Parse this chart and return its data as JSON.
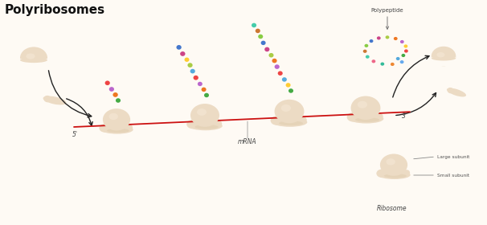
{
  "title": "Polyribosomes",
  "background_color": "#fefaf4",
  "ribosome_color": "#ecdbc4",
  "ribosome_shadow": "#dbc8a8",
  "ribosome_edge": "none",
  "mrna_color": "#cc1111",
  "arrow_color": "#222222",
  "label_mrna": "mRNA",
  "label_polypeptide": "Polypeptide",
  "label_ribosome": "Ribosome",
  "label_large": "Large subunit",
  "label_small": "Small subunit",
  "label_5prime": "5'",
  "label_3prime": "3'",
  "chain1_colors": [
    "#44aa44",
    "#ee7722",
    "#bb66cc",
    "#ee4444"
  ],
  "chain2_colors": [
    "#44aa44",
    "#ee7722",
    "#bb66cc",
    "#ee4444",
    "#55aadd",
    "#aacc44",
    "#ffcc33",
    "#cc4488",
    "#4477cc"
  ],
  "chain3_colors": [
    "#44aa44",
    "#ffcc33",
    "#55aadd",
    "#ee4444",
    "#bb66cc",
    "#ee7722",
    "#aacc44",
    "#cc4488",
    "#4477cc",
    "#88cc44",
    "#cc7733",
    "#44ccaa"
  ],
  "chain4_colors": [
    "#55aadd",
    "#44aa44",
    "#ee4444",
    "#ffcc33",
    "#bb66cc",
    "#ee7722",
    "#aacc44",
    "#cc4488",
    "#4477cc",
    "#88cc44",
    "#cc7733",
    "#44ccaa",
    "#ee6688",
    "#33bb99",
    "#ee8833",
    "#66aaee"
  ]
}
